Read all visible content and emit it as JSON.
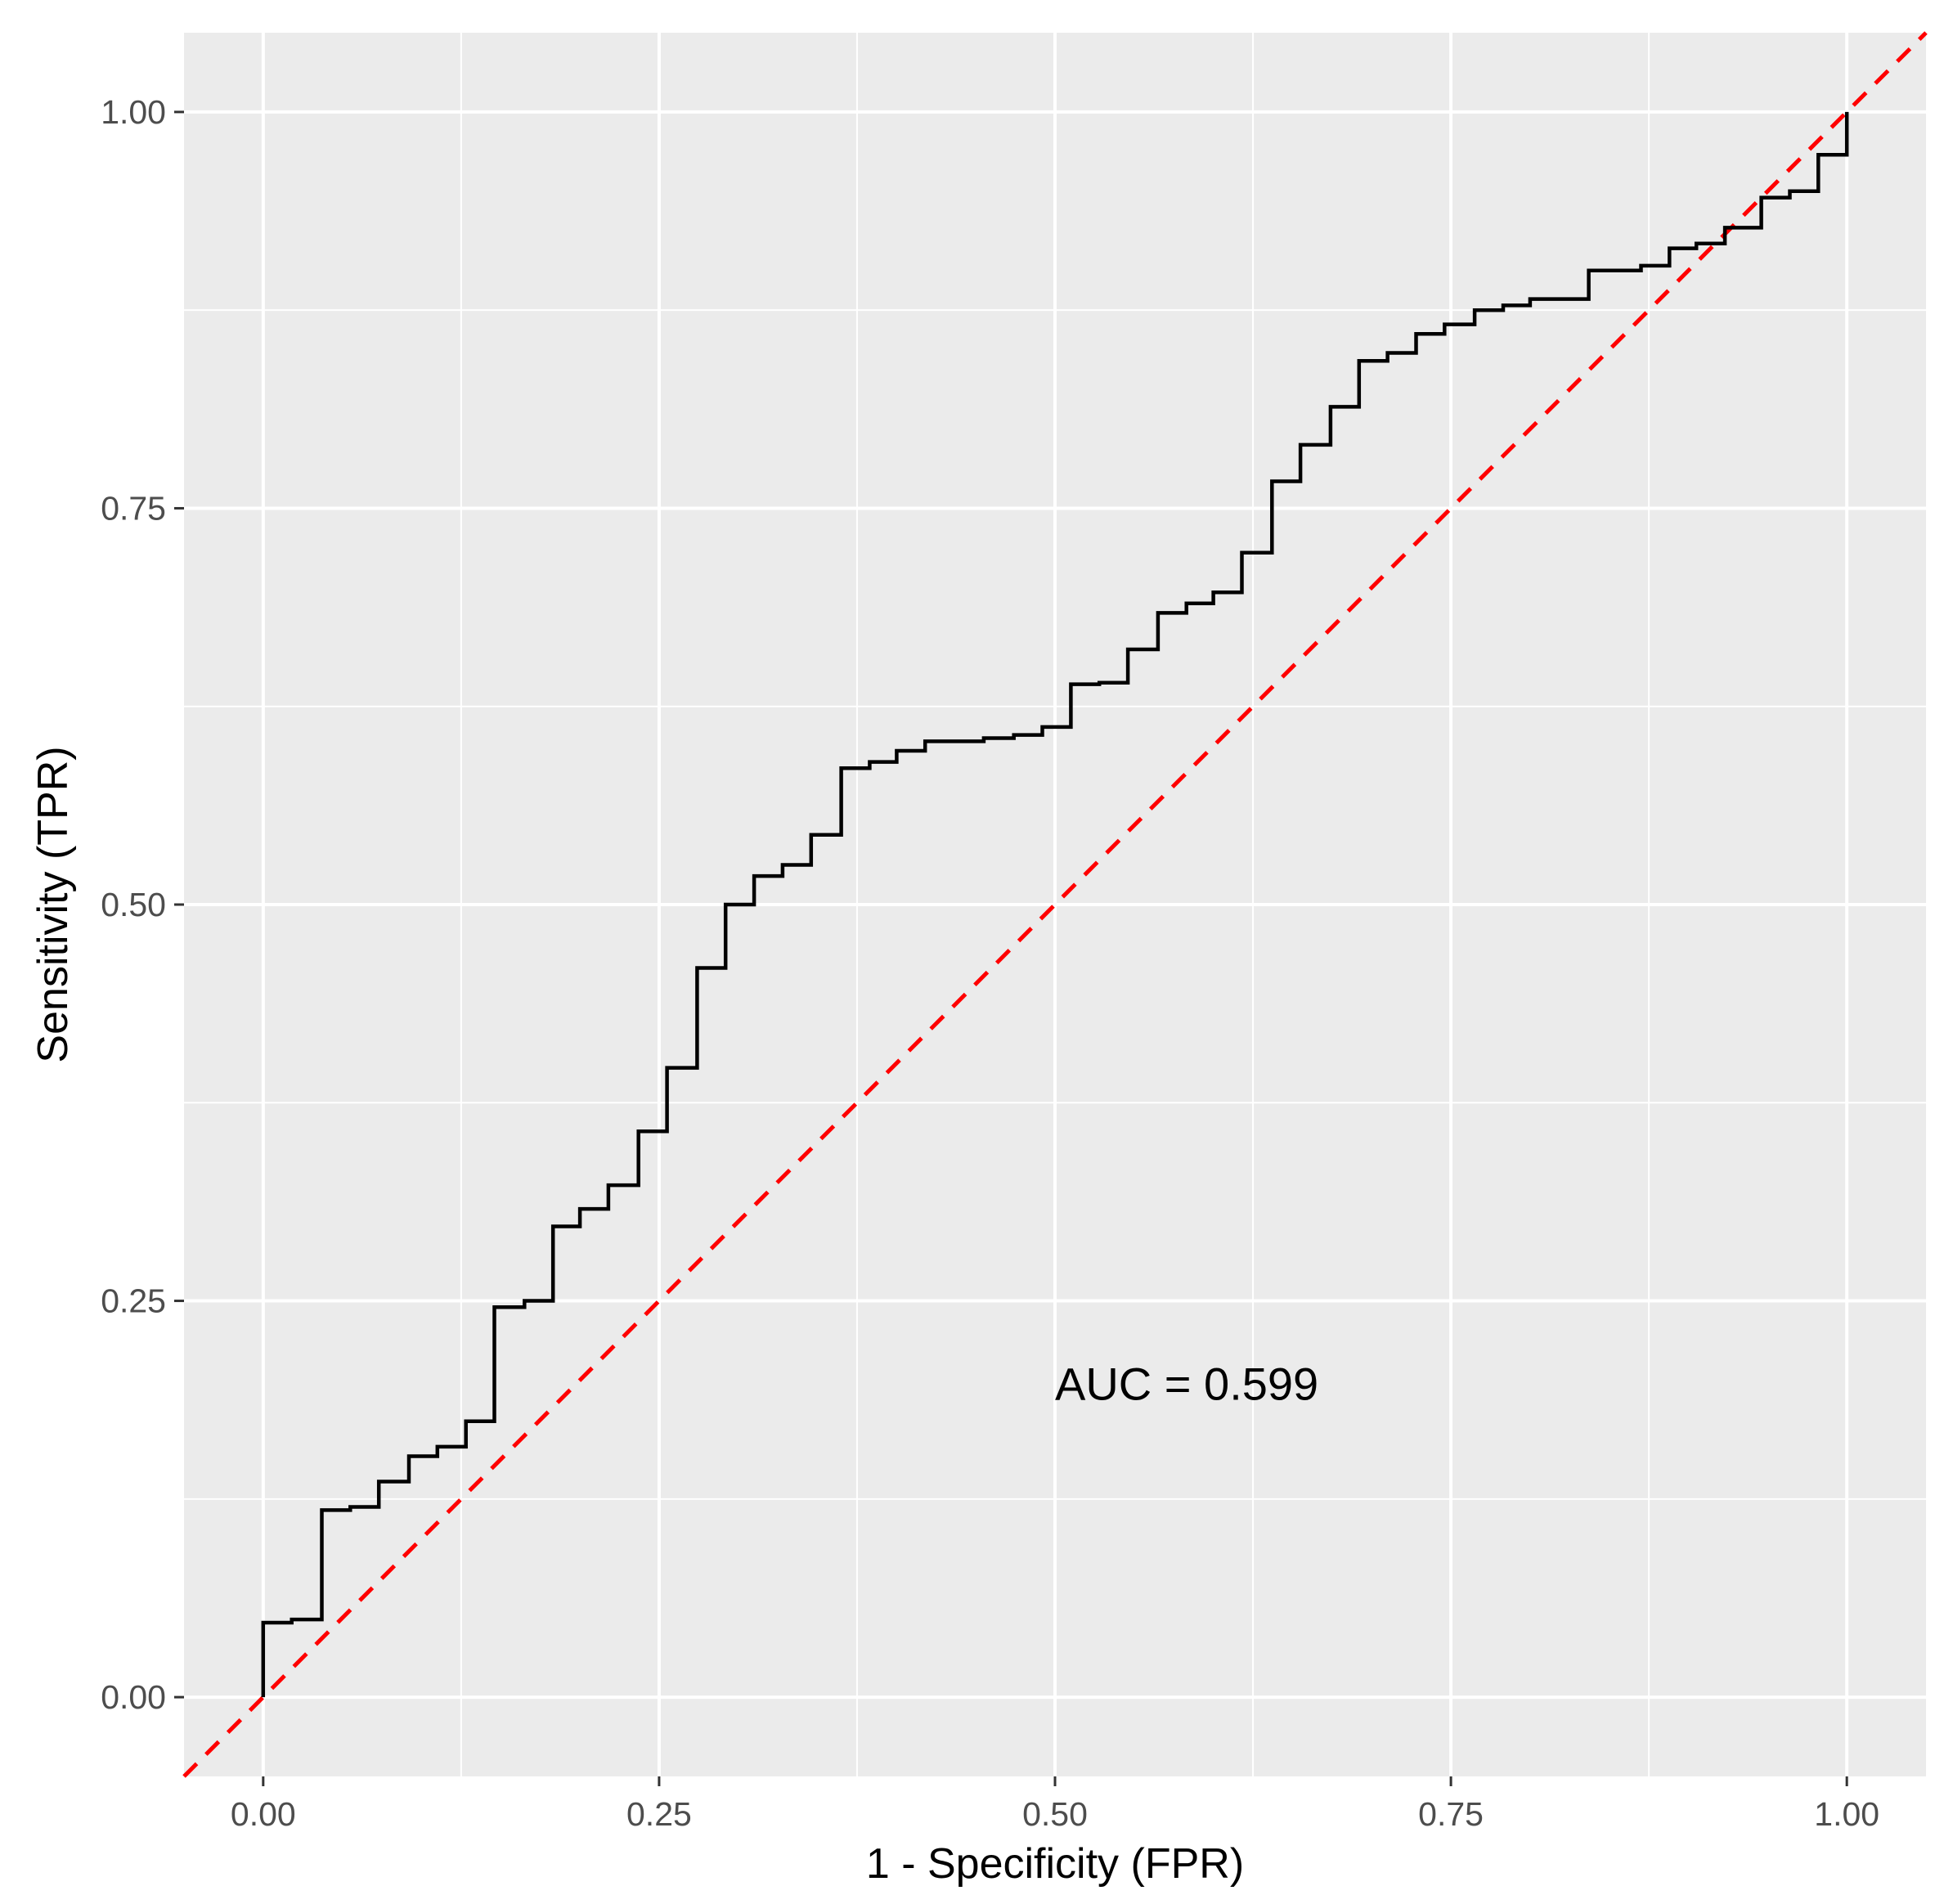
{
  "chart_data": {
    "type": "line",
    "title": "",
    "xlabel": "1 - Specificity (FPR)",
    "ylabel": "Sensitivity (TPR)",
    "xlim": [
      -0.05,
      1.05
    ],
    "ylim": [
      -0.05,
      1.05
    ],
    "xticks": [
      0.0,
      0.25,
      0.5,
      0.75,
      1.0
    ],
    "xtick_labels": [
      "0.00",
      "0.25",
      "0.50",
      "0.75",
      "1.00"
    ],
    "yticks": [
      0.0,
      0.25,
      0.5,
      0.75,
      1.0
    ],
    "ytick_labels": [
      "0.00",
      "0.25",
      "0.50",
      "0.75",
      "1.00"
    ],
    "grid": true,
    "colors": {
      "panel": "#ebebeb",
      "grid": "#ffffff",
      "roc": "#000000",
      "reference": "#ff0000"
    },
    "annotation": {
      "text": "AUC = 0.599",
      "x": 0.5,
      "y": 0.198
    },
    "series": [
      {
        "name": "ROC curve",
        "style": "step",
        "points": [
          [
            0.0,
            0.0
          ],
          [
            0.0,
            0.047
          ],
          [
            0.018,
            0.047
          ],
          [
            0.018,
            0.049
          ],
          [
            0.037,
            0.049
          ],
          [
            0.037,
            0.118
          ],
          [
            0.055,
            0.118
          ],
          [
            0.055,
            0.12
          ],
          [
            0.073,
            0.12
          ],
          [
            0.073,
            0.136
          ],
          [
            0.092,
            0.136
          ],
          [
            0.092,
            0.152
          ],
          [
            0.11,
            0.152
          ],
          [
            0.11,
            0.158
          ],
          [
            0.128,
            0.158
          ],
          [
            0.128,
            0.174
          ],
          [
            0.146,
            0.174
          ],
          [
            0.146,
            0.246
          ],
          [
            0.165,
            0.246
          ],
          [
            0.165,
            0.25
          ],
          [
            0.183,
            0.25
          ],
          [
            0.183,
            0.297
          ],
          [
            0.2,
            0.297
          ],
          [
            0.2,
            0.308
          ],
          [
            0.218,
            0.308
          ],
          [
            0.218,
            0.323
          ],
          [
            0.237,
            0.323
          ],
          [
            0.237,
            0.357
          ],
          [
            0.255,
            0.357
          ],
          [
            0.255,
            0.397
          ],
          [
            0.274,
            0.397
          ],
          [
            0.274,
            0.46
          ],
          [
            0.292,
            0.46
          ],
          [
            0.292,
            0.5
          ],
          [
            0.31,
            0.5
          ],
          [
            0.31,
            0.518
          ],
          [
            0.328,
            0.518
          ],
          [
            0.328,
            0.525
          ],
          [
            0.346,
            0.525
          ],
          [
            0.346,
            0.544
          ],
          [
            0.365,
            0.544
          ],
          [
            0.365,
            0.586
          ],
          [
            0.383,
            0.586
          ],
          [
            0.383,
            0.59
          ],
          [
            0.4,
            0.59
          ],
          [
            0.4,
            0.597
          ],
          [
            0.418,
            0.597
          ],
          [
            0.418,
            0.603
          ],
          [
            0.455,
            0.603
          ],
          [
            0.455,
            0.605
          ],
          [
            0.474,
            0.605
          ],
          [
            0.474,
            0.607
          ],
          [
            0.492,
            0.607
          ],
          [
            0.492,
            0.612
          ],
          [
            0.51,
            0.612
          ],
          [
            0.51,
            0.639
          ],
          [
            0.528,
            0.639
          ],
          [
            0.528,
            0.64
          ],
          [
            0.546,
            0.64
          ],
          [
            0.546,
            0.661
          ],
          [
            0.565,
            0.661
          ],
          [
            0.565,
            0.684
          ],
          [
            0.583,
            0.684
          ],
          [
            0.583,
            0.69
          ],
          [
            0.6,
            0.69
          ],
          [
            0.6,
            0.697
          ],
          [
            0.618,
            0.697
          ],
          [
            0.618,
            0.722
          ],
          [
            0.637,
            0.722
          ],
          [
            0.637,
            0.767
          ],
          [
            0.655,
            0.767
          ],
          [
            0.655,
            0.79
          ],
          [
            0.674,
            0.79
          ],
          [
            0.674,
            0.814
          ],
          [
            0.692,
            0.814
          ],
          [
            0.692,
            0.843
          ],
          [
            0.71,
            0.843
          ],
          [
            0.71,
            0.848
          ],
          [
            0.728,
            0.848
          ],
          [
            0.728,
            0.86
          ],
          [
            0.746,
            0.86
          ],
          [
            0.746,
            0.866
          ],
          [
            0.765,
            0.866
          ],
          [
            0.765,
            0.875
          ],
          [
            0.783,
            0.875
          ],
          [
            0.783,
            0.878
          ],
          [
            0.8,
            0.878
          ],
          [
            0.8,
            0.882
          ],
          [
            0.837,
            0.882
          ],
          [
            0.837,
            0.9
          ],
          [
            0.87,
            0.9
          ],
          [
            0.87,
            0.903
          ],
          [
            0.888,
            0.903
          ],
          [
            0.888,
            0.914
          ],
          [
            0.905,
            0.914
          ],
          [
            0.905,
            0.917
          ],
          [
            0.923,
            0.917
          ],
          [
            0.923,
            0.927
          ],
          [
            0.946,
            0.927
          ],
          [
            0.946,
            0.946
          ],
          [
            0.964,
            0.946
          ],
          [
            0.964,
            0.95
          ],
          [
            0.982,
            0.95
          ],
          [
            0.982,
            0.973
          ],
          [
            1.0,
            0.973
          ],
          [
            1.0,
            1.0
          ]
        ]
      },
      {
        "name": "Random classifier",
        "style": "dashed",
        "points": [
          [
            -0.05,
            -0.05
          ],
          [
            1.05,
            1.05
          ]
        ]
      }
    ]
  }
}
